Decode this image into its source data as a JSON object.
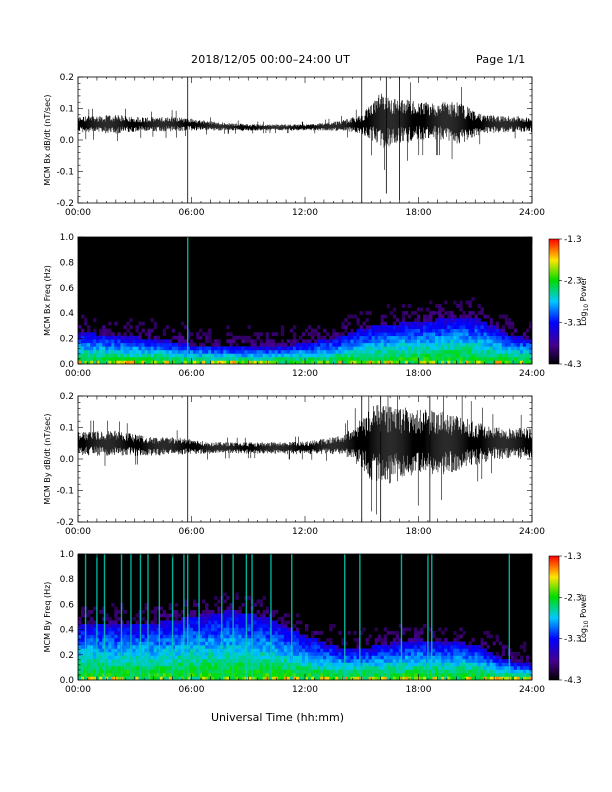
{
  "header": {
    "title": "2018/12/05  00:00–24:00 UT",
    "page": "Page 1/1"
  },
  "xaxis_title": "Universal Time (hh:mm)",
  "chart_data": [
    {
      "type": "line",
      "ylabel": "MCM Bx dB/dt (nT/sec)",
      "xlim": [
        "00:00",
        "24:00"
      ],
      "ylim": [
        -0.2,
        0.2
      ],
      "x_ticks": [
        "00:00",
        "06:00",
        "12:00",
        "18:00",
        "24:00"
      ],
      "y_ticks": [
        "-0.2",
        "-0.1",
        "0.0",
        "0.1",
        "0.2"
      ],
      "series": [
        {
          "x_hours": [
            0,
            1,
            2,
            3,
            4,
            5,
            5.8,
            7,
            8,
            9,
            10,
            11,
            12,
            13,
            14,
            15,
            15.5,
            16,
            16.5,
            17,
            17.5,
            18,
            18.5,
            19,
            19.5,
            20,
            20.5,
            21,
            21.5,
            22,
            23,
            24
          ],
          "baseline": [
            0.05,
            0.05,
            0.05,
            0.05,
            0.05,
            0.05,
            0.05,
            0.045,
            0.042,
            0.04,
            0.04,
            0.04,
            0.04,
            0.042,
            0.045,
            0.05,
            0.06,
            0.06,
            0.06,
            0.06,
            0.06,
            0.06,
            0.06,
            0.06,
            0.06,
            0.055,
            0.05,
            0.05,
            0.05,
            0.05,
            0.05,
            0.05
          ],
          "envelope": [
            0.025,
            0.028,
            0.03,
            0.025,
            0.022,
            0.025,
            0.02,
            0.015,
            0.012,
            0.011,
            0.01,
            0.01,
            0.01,
            0.012,
            0.018,
            0.03,
            0.06,
            0.09,
            0.08,
            0.07,
            0.07,
            0.06,
            0.06,
            0.06,
            0.06,
            0.07,
            0.06,
            0.04,
            0.03,
            0.028,
            0.025,
            0.025
          ]
        }
      ],
      "spikes": [
        {
          "x_hours": 5.8,
          "y_min": -0.2,
          "y_max": 0.2
        },
        {
          "x_hours": 15.0,
          "y_min": -0.2,
          "y_max": 0.2
        },
        {
          "x_hours": 16.3,
          "y_min": -0.17,
          "y_max": 0.2
        },
        {
          "x_hours": 17.0,
          "y_min": -0.19,
          "y_max": 0.2
        }
      ]
    },
    {
      "type": "heatmap",
      "ylabel": "MCM Bx Freq (Hz)",
      "xlim": [
        "00:00",
        "24:00"
      ],
      "ylim": [
        0.0,
        1.0
      ],
      "x_ticks": [
        "00:00",
        "06:00",
        "12:00",
        "18:00",
        "24:00"
      ],
      "y_ticks": [
        "0.0",
        "0.2",
        "0.4",
        "0.6",
        "0.8",
        "1.0"
      ],
      "colorbar": {
        "label": "Log10 Power",
        "label_base": "Log",
        "label_sub": "10",
        "label_tail": " Power",
        "min": -4.3,
        "max": -1.3,
        "ticks": [
          "-1.3",
          "-2.3",
          "-3.3",
          "-4.3"
        ]
      },
      "activity_profile": {
        "x_hours": [
          0,
          2,
          4,
          6,
          8,
          10,
          12,
          14,
          15,
          16,
          17,
          18,
          19,
          20,
          21,
          22,
          23,
          24
        ],
        "top_freq_hz": [
          0.25,
          0.22,
          0.2,
          0.15,
          0.14,
          0.13,
          0.16,
          0.22,
          0.28,
          0.3,
          0.32,
          0.33,
          0.35,
          0.37,
          0.36,
          0.3,
          0.22,
          0.2
        ]
      },
      "broadband_lines_hours": [
        5.8
      ]
    },
    {
      "type": "line",
      "ylabel": "MCM By dB/dt (nT/sec)",
      "xlim": [
        "00:00",
        "24:00"
      ],
      "ylim": [
        -0.2,
        0.2
      ],
      "x_ticks": [
        "00:00",
        "06:00",
        "12:00",
        "18:00",
        "24:00"
      ],
      "y_ticks": [
        "-0.2",
        "-0.1",
        "0.0",
        "0.1",
        "0.2"
      ],
      "series": [
        {
          "x_hours": [
            0,
            1,
            2,
            3,
            4,
            5,
            5.8,
            7,
            8,
            9,
            10,
            11,
            12,
            13,
            14,
            15,
            15.5,
            16,
            16.5,
            17,
            17.5,
            18,
            18.5,
            19,
            19.5,
            20,
            20.5,
            21,
            21.5,
            22,
            23,
            24
          ],
          "baseline": [
            0.05,
            0.05,
            0.05,
            0.045,
            0.04,
            0.04,
            0.04,
            0.035,
            0.035,
            0.035,
            0.035,
            0.035,
            0.035,
            0.04,
            0.045,
            0.05,
            0.05,
            0.05,
            0.05,
            0.05,
            0.05,
            0.05,
            0.05,
            0.05,
            0.05,
            0.05,
            0.05,
            0.05,
            0.05,
            0.05,
            0.05,
            0.05
          ],
          "envelope": [
            0.04,
            0.04,
            0.04,
            0.035,
            0.03,
            0.03,
            0.025,
            0.02,
            0.018,
            0.018,
            0.018,
            0.02,
            0.02,
            0.025,
            0.03,
            0.08,
            0.12,
            0.13,
            0.13,
            0.12,
            0.11,
            0.11,
            0.11,
            0.1,
            0.1,
            0.09,
            0.08,
            0.07,
            0.06,
            0.05,
            0.05,
            0.05
          ]
        }
      ],
      "spikes": [
        {
          "x_hours": 5.8,
          "y_min": -0.2,
          "y_max": 0.2
        },
        {
          "x_hours": 15.0,
          "y_min": -0.2,
          "y_max": 0.2
        },
        {
          "x_hours": 16.0,
          "y_min": -0.2,
          "y_max": 0.2
        },
        {
          "x_hours": 18.6,
          "y_min": -0.2,
          "y_max": 0.2
        }
      ]
    },
    {
      "type": "heatmap",
      "ylabel": "MCM By Freq (Hz)",
      "xlim": [
        "00:00",
        "24:00"
      ],
      "ylim": [
        0.0,
        1.0
      ],
      "x_ticks": [
        "00:00",
        "06:00",
        "12:00",
        "18:00",
        "24:00"
      ],
      "y_ticks": [
        "0.0",
        "0.2",
        "0.4",
        "0.6",
        "0.8",
        "1.0"
      ],
      "colorbar": {
        "label": "Log10 Power",
        "label_base": "Log",
        "label_sub": "10",
        "label_tail": " Power",
        "min": -4.3,
        "max": -1.3,
        "ticks": [
          "-1.3",
          "-2.3",
          "-3.3",
          "-4.3"
        ]
      },
      "activity_profile": {
        "x_hours": [
          0,
          2,
          4,
          6,
          8,
          10,
          12,
          14,
          15,
          16,
          17,
          18,
          19,
          20,
          21,
          22,
          23,
          24
        ],
        "top_freq_hz": [
          0.45,
          0.45,
          0.45,
          0.5,
          0.55,
          0.5,
          0.35,
          0.25,
          0.25,
          0.28,
          0.3,
          0.32,
          0.3,
          0.3,
          0.28,
          0.2,
          0.15,
          0.12
        ]
      },
      "broadband_lines_hours": [
        0.4,
        1.0,
        1.4,
        2.3,
        2.8,
        3.3,
        3.7,
        4.3,
        5.0,
        5.6,
        5.8,
        6.4,
        7.6,
        8.2,
        8.9,
        9.2,
        10.2,
        11.3,
        14.1,
        14.9,
        17.1,
        18.5,
        18.7,
        22.8
      ]
    }
  ]
}
